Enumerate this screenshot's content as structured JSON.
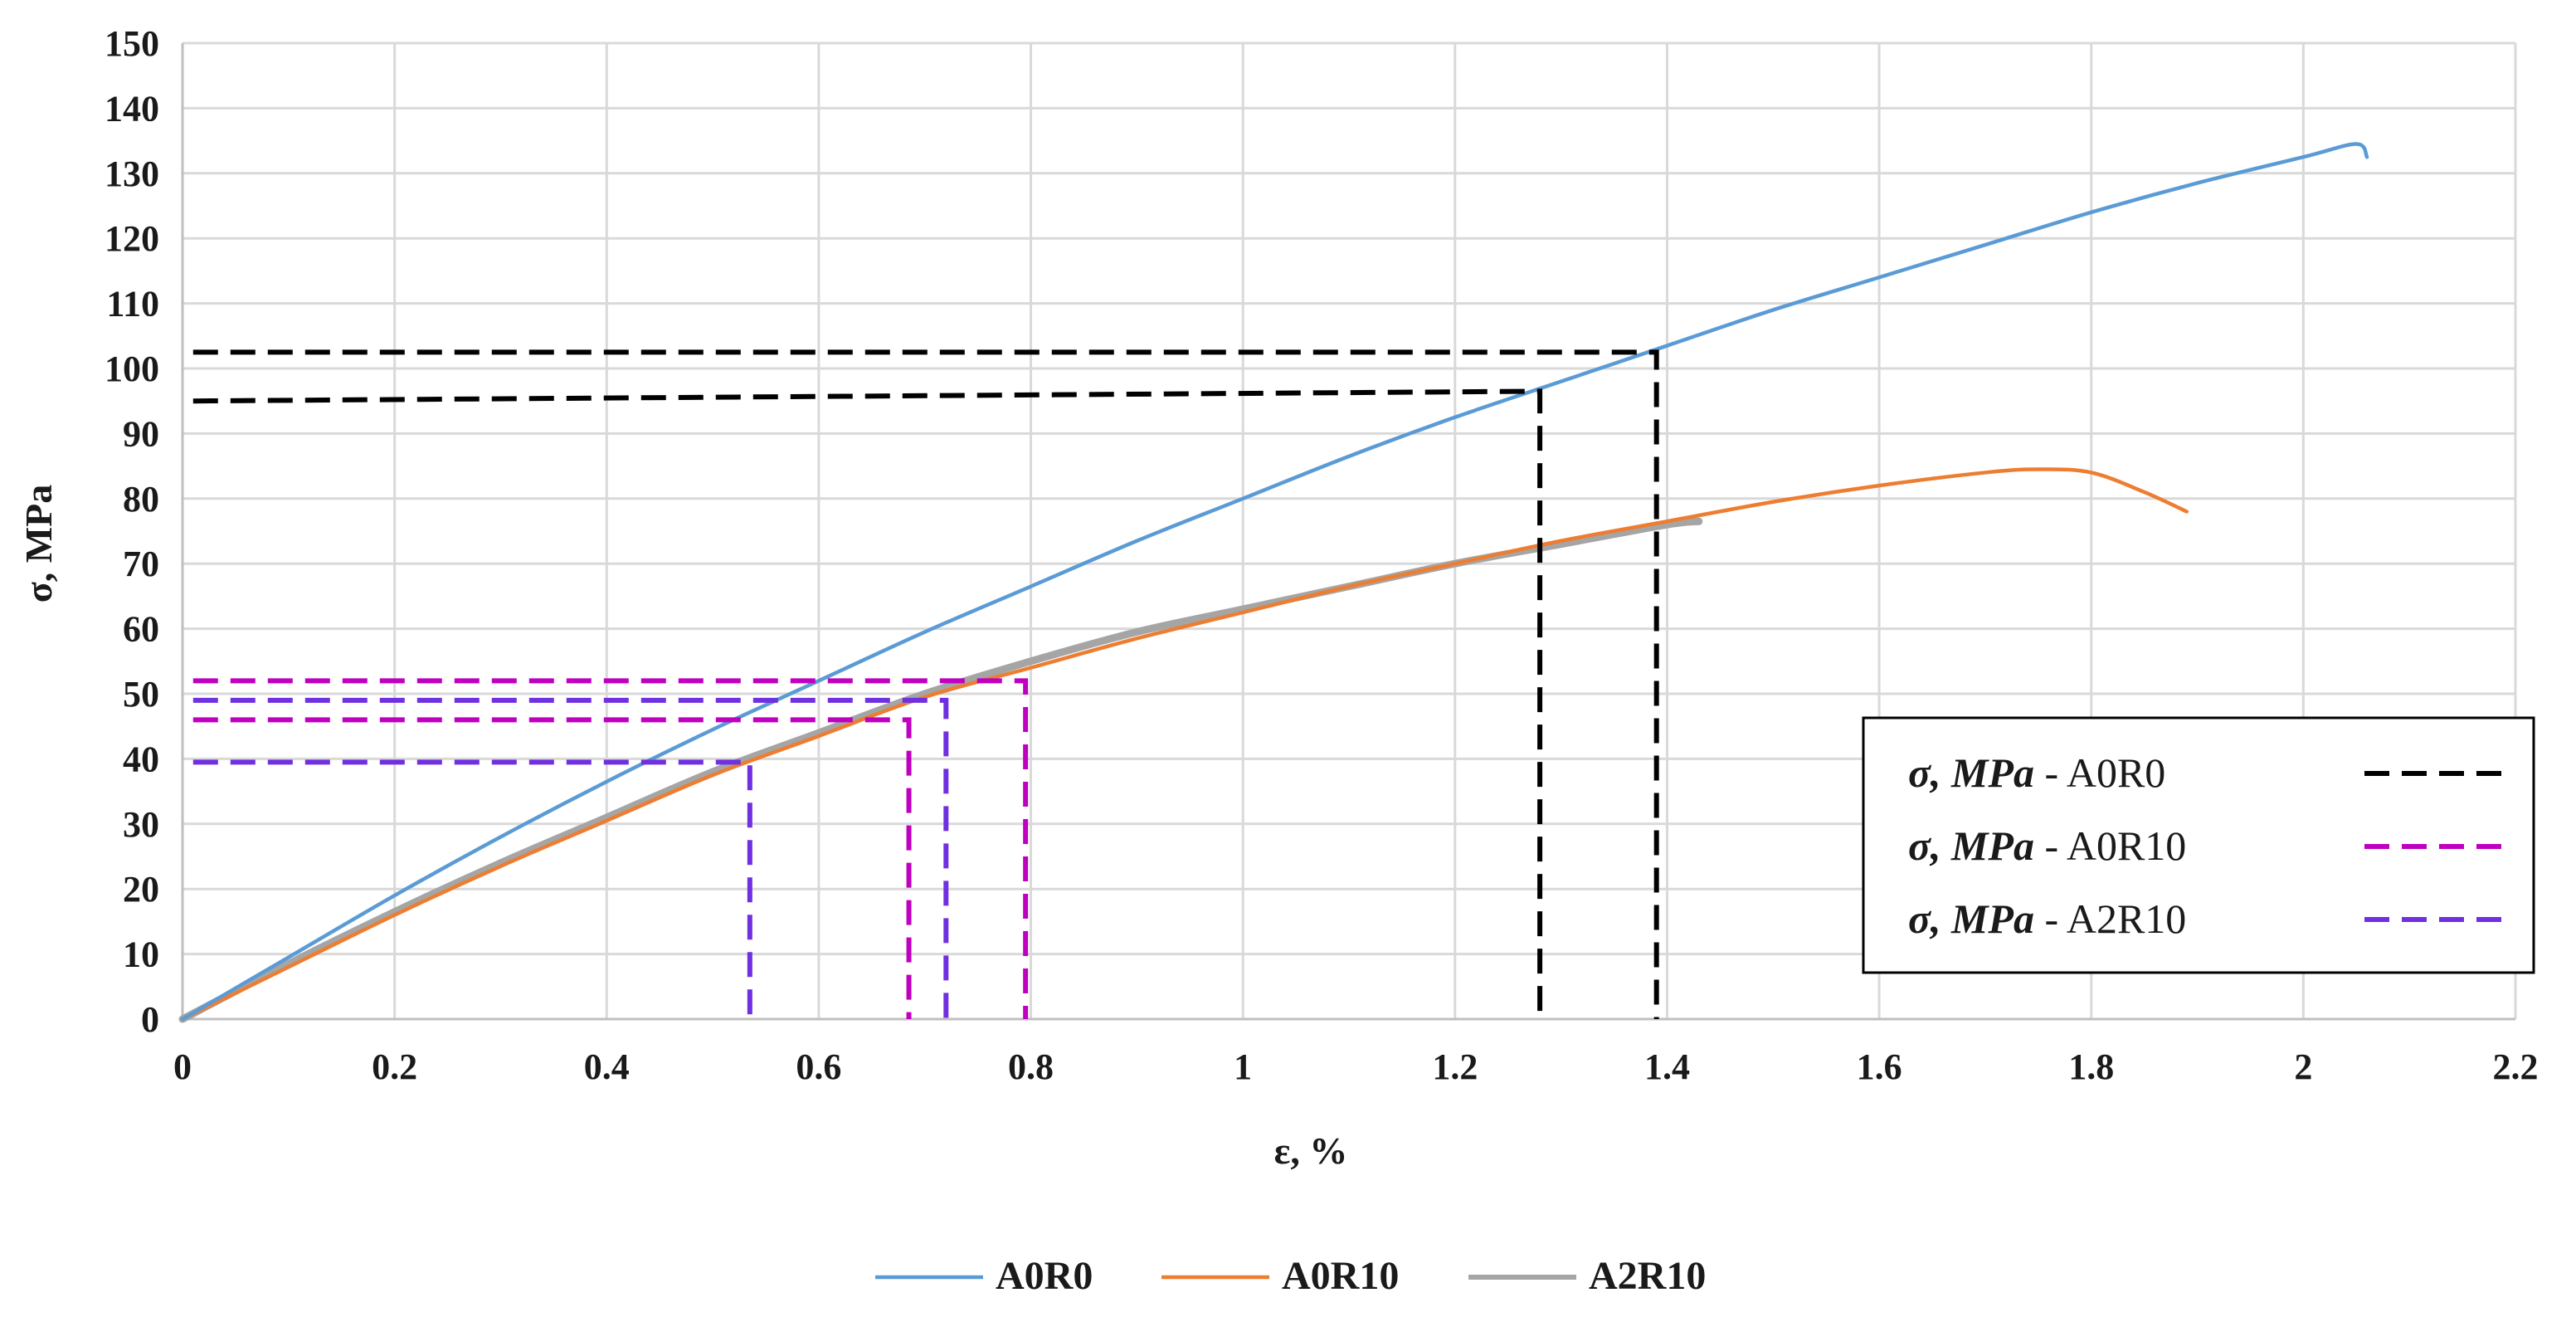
{
  "chart_data": {
    "type": "line",
    "xlabel": "ε, %",
    "ylabel": "σ, MPa",
    "xlim": [
      0,
      2.2
    ],
    "ylim": [
      0,
      150
    ],
    "x_ticks": [
      "0",
      "0.2",
      "0.4",
      "0.6",
      "0.8",
      "1",
      "1.2",
      "1.4",
      "1.6",
      "1.8",
      "2",
      "2.2"
    ],
    "y_ticks": [
      "0",
      "10",
      "20",
      "30",
      "40",
      "50",
      "60",
      "70",
      "80",
      "90",
      "100",
      "110",
      "120",
      "130",
      "140",
      "150"
    ],
    "grid": true,
    "legend_position": "bottom",
    "series": [
      {
        "name": "A0R0",
        "color": "#5b9bd5",
        "points": [
          [
            0,
            0
          ],
          [
            0.1,
            9.5
          ],
          [
            0.2,
            19
          ],
          [
            0.3,
            28
          ],
          [
            0.4,
            36.5
          ],
          [
            0.5,
            44.5
          ],
          [
            0.6,
            52
          ],
          [
            0.7,
            59.5
          ],
          [
            0.8,
            66.5
          ],
          [
            0.9,
            73.5
          ],
          [
            1.0,
            80
          ],
          [
            1.1,
            86.5
          ],
          [
            1.2,
            92.5
          ],
          [
            1.3,
            98
          ],
          [
            1.4,
            103.5
          ],
          [
            1.5,
            109
          ],
          [
            1.6,
            114
          ],
          [
            1.7,
            119
          ],
          [
            1.8,
            124
          ],
          [
            1.9,
            128.5
          ],
          [
            2.0,
            132.5
          ],
          [
            2.05,
            134.5
          ],
          [
            2.06,
            132.5
          ]
        ]
      },
      {
        "name": "A0R10",
        "color": "#ed7d31",
        "points": [
          [
            0,
            0
          ],
          [
            0.1,
            8
          ],
          [
            0.2,
            16
          ],
          [
            0.3,
            23.5
          ],
          [
            0.4,
            30.5
          ],
          [
            0.5,
            37.5
          ],
          [
            0.6,
            43.5
          ],
          [
            0.7,
            49.5
          ],
          [
            0.8,
            54
          ],
          [
            0.9,
            58.5
          ],
          [
            1.0,
            62.5
          ],
          [
            1.1,
            66.5
          ],
          [
            1.2,
            70
          ],
          [
            1.3,
            73.5
          ],
          [
            1.4,
            76.5
          ],
          [
            1.5,
            79.5
          ],
          [
            1.6,
            82
          ],
          [
            1.7,
            84
          ],
          [
            1.75,
            84.5
          ],
          [
            1.8,
            84
          ],
          [
            1.85,
            81
          ],
          [
            1.89,
            78
          ]
        ]
      },
      {
        "name": "A2R10",
        "color": "#a5a5a5",
        "points": [
          [
            0,
            0
          ],
          [
            0.1,
            8.5
          ],
          [
            0.2,
            16.5
          ],
          [
            0.3,
            24
          ],
          [
            0.4,
            31
          ],
          [
            0.5,
            38
          ],
          [
            0.6,
            44
          ],
          [
            0.7,
            50
          ],
          [
            0.8,
            55
          ],
          [
            0.9,
            59.5
          ],
          [
            1.0,
            63
          ],
          [
            1.1,
            66.5
          ],
          [
            1.2,
            70
          ],
          [
            1.3,
            73
          ],
          [
            1.4,
            76
          ],
          [
            1.43,
            76.5
          ]
        ]
      }
    ],
    "reference_lines": [
      {
        "group": "A0R0",
        "x": 1.39,
        "y": 102.5,
        "color": "#000000"
      },
      {
        "group": "A0R0",
        "x": 1.28,
        "y": 96.5,
        "x_start": 0.01,
        "y_start": 95,
        "color": "#000000"
      },
      {
        "group": "A0R10",
        "x": 0.795,
        "y": 52,
        "color": "#c000c0"
      },
      {
        "group": "A0R10",
        "x": 0.685,
        "y": 46,
        "color": "#c000c0"
      },
      {
        "group": "A2R10",
        "x": 0.72,
        "y": 49,
        "color": "#7030e0"
      },
      {
        "group": "A2R10",
        "x": 0.535,
        "y": 39.5,
        "color": "#7030e0"
      }
    ],
    "reference_legend": {
      "position": "center-right",
      "entries": [
        {
          "symbol": "σ, MPa",
          "suffix": " - A0R0",
          "color": "#000000"
        },
        {
          "symbol": "σ, MPa",
          "suffix": " - A0R10",
          "color": "#c000c0"
        },
        {
          "symbol": "σ, MPa",
          "suffix": " - A2R10",
          "color": "#7030e0"
        }
      ]
    }
  }
}
